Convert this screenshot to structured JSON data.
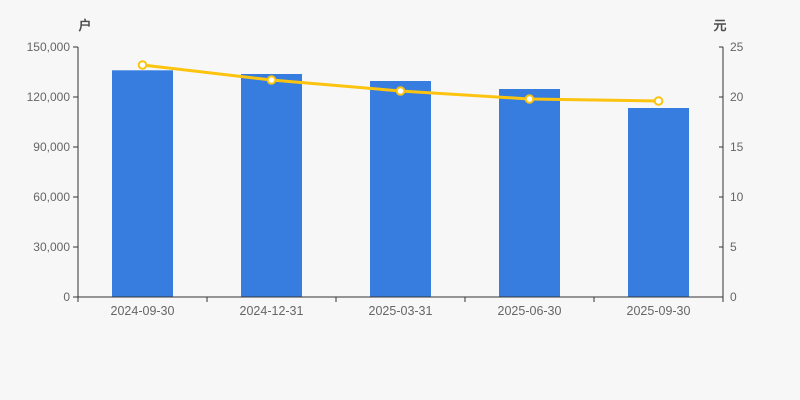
{
  "colors": {
    "background": "#f7f7f8",
    "bar": "#377de0",
    "line": "#fcc40e",
    "marker_fill": "#ffffff",
    "axis": "#333333",
    "tick_label": "#666666",
    "axis_title": "#4d4d4d"
  },
  "chart_data": {
    "type": "combo",
    "title": "",
    "categories": [
      "2024-09-30",
      "2024-12-31",
      "2025-03-31",
      "2025-06-30",
      "2025-09-30"
    ],
    "series": [
      {
        "type": "bar",
        "yaxis": "left",
        "values": [
          136000,
          133800,
          129600,
          124800,
          113400
        ]
      },
      {
        "type": "line",
        "yaxis": "right",
        "values": [
          23.2,
          21.7,
          20.6,
          19.8,
          19.6
        ]
      }
    ],
    "y_left": {
      "label": "户",
      "lim": [
        0,
        150000
      ],
      "ticks": [
        "0",
        "30,000",
        "60,000",
        "90,000",
        "120,000",
        "150,000"
      ]
    },
    "y_right": {
      "label": "元",
      "lim": [
        0,
        25
      ],
      "ticks": [
        "0",
        "5",
        "10",
        "15",
        "20",
        "25"
      ]
    },
    "grid": false,
    "legend": "none"
  }
}
